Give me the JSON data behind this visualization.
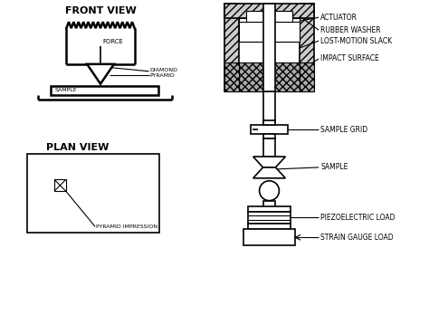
{
  "bg_color": "#ffffff",
  "line_color": "#000000",
  "title_front": "FRONT VIEW",
  "title_plan": "PLAN VIEW",
  "labels": {
    "actuator": "ACTUATOR",
    "rubber_washer": "RUBBER WASHER",
    "lost_motion": "LOST-MOTION SLACK",
    "impact_surface": "IMPACT SURFACE",
    "sample_grid": "SAMPLE GRID",
    "sample": "SAMPLE",
    "piezo": "PIEZOELECTRIC LOAD",
    "strain": "STRAIN GAUGE LOAD",
    "diamond": "DIAMOND\nPYRAMID",
    "sample_front": "SAMPLE",
    "force": "FORCE",
    "pyramid_imp": "PYRAMID IMPRESSION"
  },
  "figsize": [
    4.74,
    3.48
  ],
  "dpi": 100
}
